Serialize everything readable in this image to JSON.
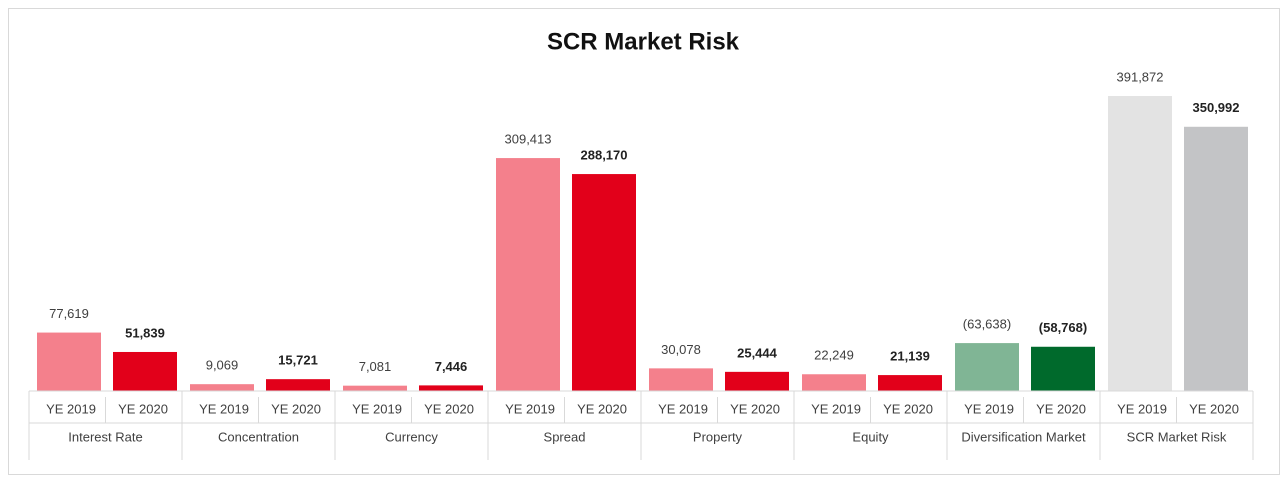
{
  "chart_data": {
    "type": "bar",
    "title": "SCR Market Risk",
    "categories": [
      "Interest Rate",
      "Concentration",
      "Currency",
      "Spread",
      "Property",
      "Equity",
      "Diversification Market",
      "SCR Market Risk"
    ],
    "series": [
      {
        "name": "YE 2019",
        "values": [
          77619,
          9069,
          7081,
          309413,
          30078,
          22249,
          -63638,
          391872
        ],
        "value_labels": [
          "77,619",
          "9,069",
          "7,081",
          "309,413",
          "30,078",
          "22,249",
          "(63,638)",
          "391,872"
        ],
        "colors": [
          "#f4808c",
          "#f4808c",
          "#f4808c",
          "#f4808c",
          "#f4808c",
          "#f4808c",
          "#80b595",
          "#e3e3e3"
        ]
      },
      {
        "name": "YE 2020",
        "values": [
          51839,
          15721,
          7446,
          288170,
          25444,
          21139,
          -58768,
          350992
        ],
        "value_labels": [
          "51,839",
          "15,721",
          "7,446",
          "288,170",
          "25,444",
          "21,139",
          "(58,768)",
          "350,992"
        ],
        "colors": [
          "#e2001a",
          "#e2001a",
          "#e2001a",
          "#e2001a",
          "#e2001a",
          "#e2001a",
          "#006a2c",
          "#c3c4c6"
        ]
      }
    ]
  }
}
